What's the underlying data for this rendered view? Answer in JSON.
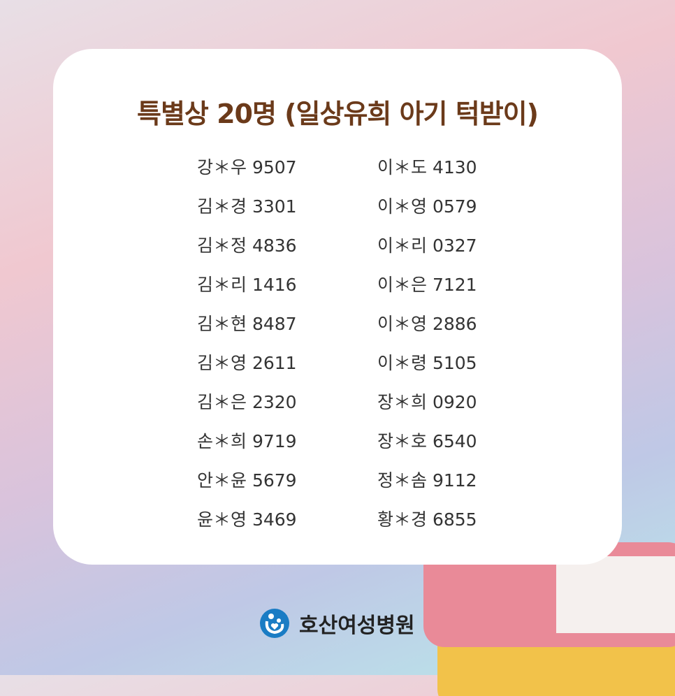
{
  "title": "특별상 20명 (일상유희 아기 턱받이)",
  "left": [
    "강＊우 9507",
    "김＊경 3301",
    "김＊정 4836",
    "김＊리 1416",
    "김＊현 8487",
    "김＊영 2611",
    "김＊은 2320",
    "손＊희 9719",
    "안＊윤 5679",
    "윤＊영 3469"
  ],
  "right": [
    "이＊도 4130",
    "이＊영 0579",
    "이＊리 0327",
    "이＊은 7121",
    "이＊영 2886",
    "이＊령 5105",
    "장＊희 0920",
    "장＊호 6540",
    "정＊솜 9112",
    "황＊경 6855"
  ],
  "footer": {
    "brand": "호산여성병원",
    "logo_color": "#1a7cc4"
  }
}
